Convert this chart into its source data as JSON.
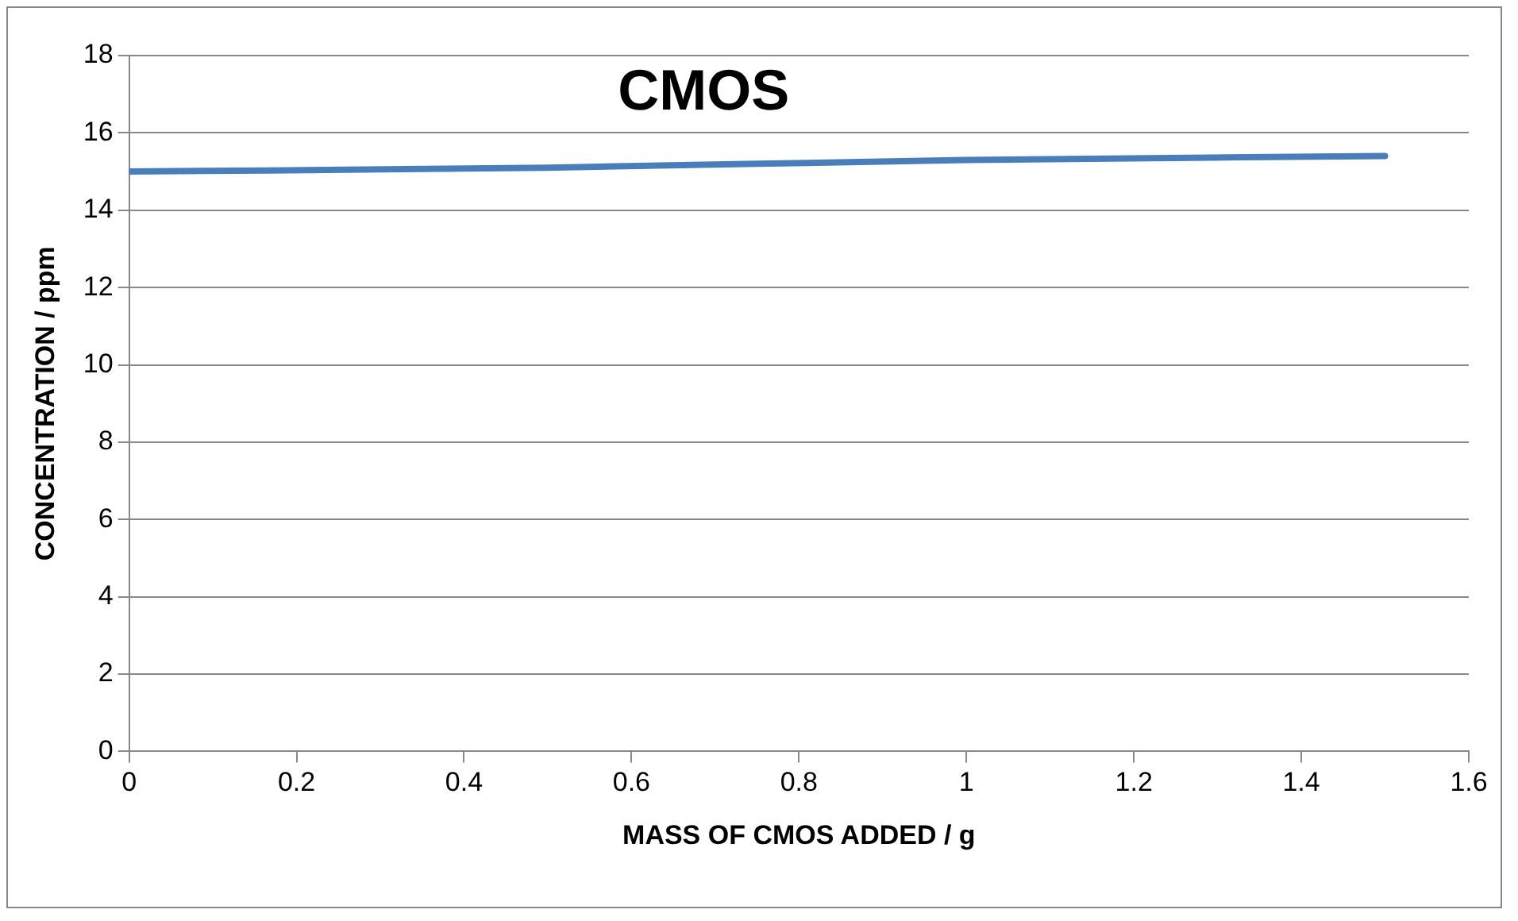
{
  "chart_data": {
    "type": "line",
    "title": "CMOS",
    "xlabel": "MASS OF CMOS ADDED / g",
    "ylabel": "CONCENTRATION / ppm",
    "x": [
      0,
      0.5,
      1,
      1.5
    ],
    "series": [
      {
        "color": "#4a7ebb",
        "values": [
          15.0,
          15.1,
          15.3,
          15.4
        ]
      }
    ],
    "xlim": [
      0,
      1.6
    ],
    "xticks": [
      0,
      0.2,
      0.4,
      0.6,
      0.8,
      1,
      1.2,
      1.4,
      1.6
    ],
    "ylim": [
      0,
      18
    ],
    "yticks": [
      0,
      2,
      4,
      6,
      8,
      10,
      12,
      14,
      16,
      18
    ],
    "grid": "y",
    "legend": false,
    "marker": "none",
    "line_style": "solid"
  }
}
